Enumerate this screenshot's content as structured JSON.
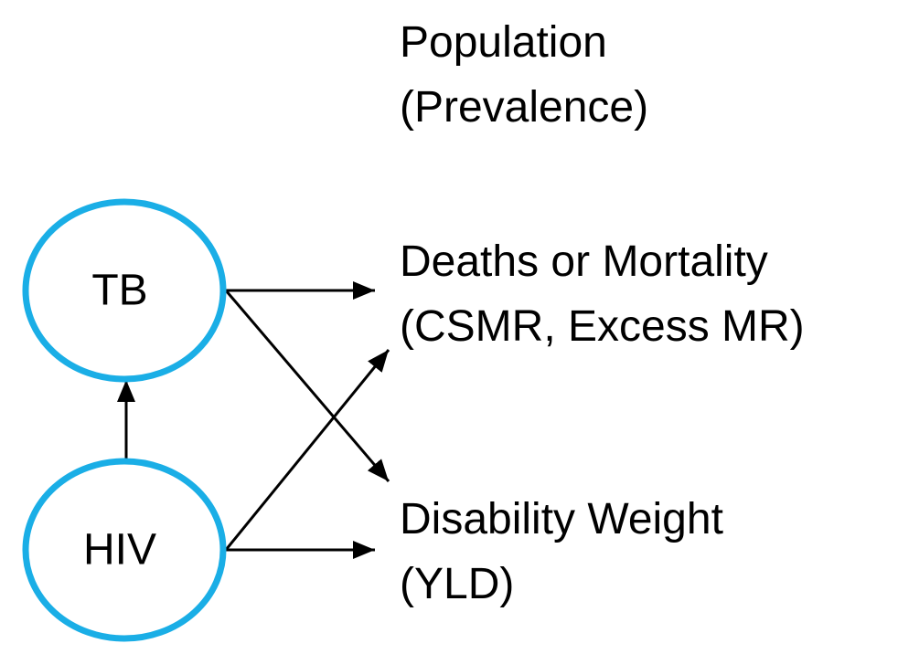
{
  "colors": {
    "node_stroke": "#1aaee6",
    "arrow": "#000000",
    "text": "#000000"
  },
  "nodes": {
    "tb": {
      "label": "TB"
    },
    "hiv": {
      "label": "HIV"
    }
  },
  "outcomes": {
    "population": {
      "line1": "Population",
      "line2": "(Prevalence)"
    },
    "deaths": {
      "line1": "Deaths or Mortality",
      "line2": "(CSMR, Excess MR)"
    },
    "disability": {
      "line1": "Disability Weight",
      "line2": "(YLD)"
    }
  },
  "edges": [
    {
      "from": "hiv",
      "to": "tb"
    },
    {
      "from": "tb",
      "to": "deaths"
    },
    {
      "from": "tb",
      "to": "disability"
    },
    {
      "from": "hiv",
      "to": "deaths"
    },
    {
      "from": "hiv",
      "to": "disability"
    }
  ]
}
